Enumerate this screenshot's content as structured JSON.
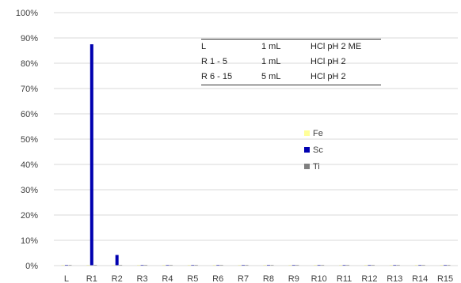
{
  "chart_data": {
    "type": "bar",
    "categories": [
      "L",
      "R1",
      "R2",
      "R3",
      "R4",
      "R5",
      "R6",
      "R7",
      "R8",
      "R9",
      "R10",
      "R11",
      "R12",
      "R13",
      "R14",
      "R15"
    ],
    "series": [
      {
        "name": "Fe",
        "color": "#ffff99",
        "values": [
          0,
          0,
          0,
          0,
          0,
          0,
          0,
          0,
          0,
          0,
          0,
          0,
          0,
          0,
          0,
          0
        ]
      },
      {
        "name": "Sc",
        "color": "#0000b0",
        "values": [
          0.2,
          87.5,
          4.2,
          0.2,
          0.2,
          0.2,
          0.2,
          0.2,
          0.2,
          0.2,
          0.2,
          0.2,
          0.2,
          0.2,
          0.2,
          0.2
        ]
      },
      {
        "name": "Ti",
        "color": "#808080",
        "values": [
          0,
          0,
          0,
          0,
          0,
          0,
          0,
          0,
          0,
          0,
          0,
          0,
          0,
          0,
          0,
          0
        ]
      }
    ],
    "y_ticks": [
      "0%",
      "10%",
      "20%",
      "30%",
      "40%",
      "50%",
      "60%",
      "70%",
      "80%",
      "90%",
      "100%"
    ],
    "ylim": [
      0,
      100
    ],
    "grid": true,
    "legend_position": "center-right",
    "title": "",
    "xlabel": "",
    "ylabel": ""
  },
  "inset_table": [
    [
      "L",
      "1 mL",
      "HCl pH 2 ME"
    ],
    [
      "R 1 - 5",
      "1 mL",
      "HCl pH 2"
    ],
    [
      "R 6 - 15",
      "5 mL",
      "HCl pH 2"
    ]
  ]
}
